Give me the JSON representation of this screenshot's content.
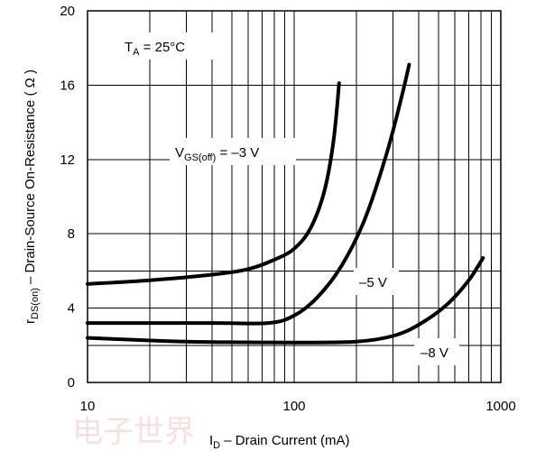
{
  "chart_data": {
    "type": "line",
    "xlabel_main": "I",
    "xlabel_sub": "D",
    "xlabel_rest": " – Drain Current (mA)",
    "ylabel_main": "r",
    "ylabel_sub": "DS(on)",
    "ylabel_rest": " – Drain-Source On-Resistance ( Ω )",
    "x_scale": "log",
    "xlim": [
      10,
      1000
    ],
    "ylim": [
      0,
      20
    ],
    "x_ticks": [
      {
        "value": 10,
        "label": "10"
      },
      {
        "value": 100,
        "label": "100"
      },
      {
        "value": 1000,
        "label": "1000"
      }
    ],
    "y_ticks": [
      {
        "value": 0,
        "label": "0"
      },
      {
        "value": 4,
        "label": "4"
      },
      {
        "value": 8,
        "label": "8"
      },
      {
        "value": 12,
        "label": "12"
      },
      {
        "value": 16,
        "label": "16"
      },
      {
        "value": 20,
        "label": "20"
      }
    ],
    "y_extra_gridlines": [
      2,
      6
    ],
    "grid": true,
    "series": [
      {
        "name": "VGS(off) = –3 V",
        "x": [
          10,
          20,
          40,
          60,
          80,
          100,
          120,
          140,
          155,
          165
        ],
        "y": [
          5.3,
          5.5,
          5.8,
          6.1,
          6.6,
          7.2,
          8.3,
          10.3,
          13.0,
          16.1
        ]
      },
      {
        "name": "–5 V",
        "x": [
          10,
          40,
          75,
          100,
          130,
          170,
          220,
          280,
          330,
          360
        ],
        "y": [
          3.2,
          3.2,
          3.2,
          3.6,
          4.6,
          6.3,
          8.8,
          12.3,
          15.3,
          17.1
        ]
      },
      {
        "name": "–8 V",
        "x": [
          10,
          30,
          100,
          200,
          300,
          400,
          550,
          700,
          820
        ],
        "y": [
          2.4,
          2.2,
          2.15,
          2.2,
          2.5,
          3.1,
          4.2,
          5.5,
          6.7
        ]
      }
    ],
    "annotations": [
      {
        "main": "T",
        "sub": "A",
        "rest": " = 25°C"
      },
      {
        "main": "V",
        "sub": "GS(off)",
        "rest": " = –3 V"
      },
      {
        "main": "–5 V",
        "sub": "",
        "rest": ""
      },
      {
        "main": "–8 V",
        "sub": "",
        "rest": ""
      }
    ]
  },
  "watermark_text": "电子世界"
}
